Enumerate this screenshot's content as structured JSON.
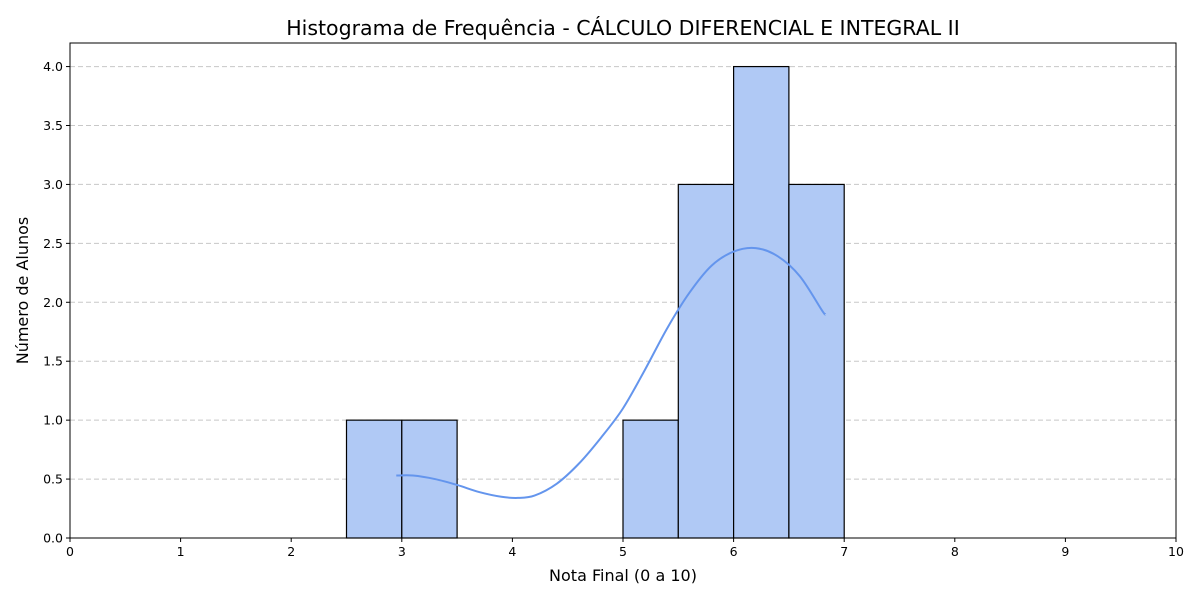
{
  "chart_data": {
    "type": "histogram",
    "title": "Histograma de Frequência - CÁLCULO DIFERENCIAL E INTEGRAL II",
    "xlabel": "Nota Final (0 a 10)",
    "ylabel": "Número de Alunos",
    "xlim": [
      0,
      10
    ],
    "ylim": [
      0,
      4.2
    ],
    "x_ticks": [
      0,
      1,
      2,
      3,
      4,
      5,
      6,
      7,
      8,
      9,
      10
    ],
    "x_tick_labels": [
      "0",
      "1",
      "2",
      "3",
      "4",
      "5",
      "6",
      "7",
      "8",
      "9",
      "10"
    ],
    "y_ticks": [
      0,
      0.5,
      1,
      1.5,
      2,
      2.5,
      3,
      3.5,
      4
    ],
    "y_tick_labels": [
      "0.0",
      "0.5",
      "1.0",
      "1.5",
      "2.0",
      "2.5",
      "3.0",
      "3.5",
      "4.0"
    ],
    "grid": "y-dashed",
    "bins": [
      {
        "start": 2.5,
        "end": 3.0,
        "count": 1
      },
      {
        "start": 3.0,
        "end": 3.5,
        "count": 1
      },
      {
        "start": 5.0,
        "end": 5.5,
        "count": 1
      },
      {
        "start": 5.5,
        "end": 6.0,
        "count": 3
      },
      {
        "start": 6.0,
        "end": 6.5,
        "count": 4
      },
      {
        "start": 6.5,
        "end": 7.0,
        "count": 3
      }
    ],
    "kde_curve": {
      "x": [
        2.95,
        3.1,
        3.3,
        3.5,
        3.7,
        3.9,
        4.05,
        4.2,
        4.4,
        4.6,
        4.8,
        5.0,
        5.2,
        5.4,
        5.6,
        5.8,
        6.0,
        6.2,
        6.4,
        6.6,
        6.8,
        6.83
      ],
      "y": [
        0.53,
        0.53,
        0.5,
        0.45,
        0.39,
        0.35,
        0.34,
        0.36,
        0.46,
        0.63,
        0.85,
        1.1,
        1.43,
        1.78,
        2.08,
        2.31,
        2.43,
        2.46,
        2.39,
        2.22,
        1.93,
        1.9
      ]
    },
    "colors": {
      "bar_fill": "#b0c9f5",
      "bar_edge": "#000000",
      "kde_line": "#6495ed",
      "grid": "#c8c8c8"
    }
  }
}
